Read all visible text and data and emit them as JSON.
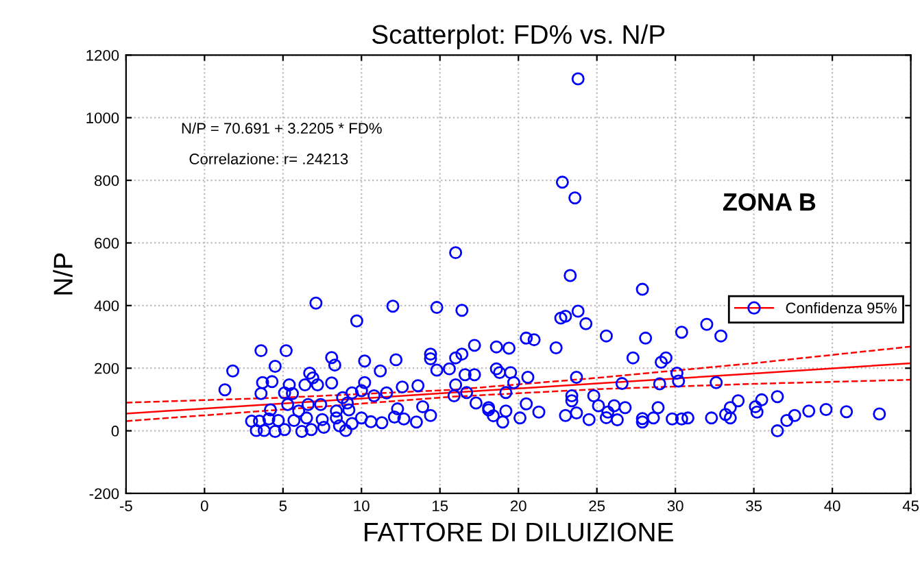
{
  "chart_data": {
    "type": "scatter",
    "title": "Scatterplot: FD% vs. N/P",
    "xlabel": "FATTORE DI DILUIZIONE",
    "ylabel": "N/P",
    "annotations": [
      "N/P = 70.691 + 3.2205 * FD%",
      "Correlazione: r= .24213",
      "ZONA B"
    ],
    "xlim": [
      -5,
      45
    ],
    "xticks": [
      -5,
      0,
      5,
      10,
      15,
      20,
      25,
      30,
      35,
      40,
      45
    ],
    "ylim": [
      -200,
      1200
    ],
    "yticks": [
      -200,
      0,
      200,
      400,
      600,
      800,
      1000,
      1200
    ],
    "grid": true,
    "legend": "right",
    "series": [
      {
        "marker": "circle",
        "color": "#0000ff",
        "x": [
          7.1,
          12.0,
          9.7,
          3.6,
          5.2,
          8.1,
          8.3,
          10.2,
          12.2,
          1.8,
          4.5,
          6.7,
          6.9,
          11.2,
          1.3,
          3.7,
          4.3,
          5.4,
          6.4,
          7.2,
          8.1,
          10.2,
          3.6,
          5.1,
          5.6,
          9.4,
          10.0,
          10.8,
          11.6,
          8.8,
          4.2,
          5.3,
          6.6,
          7.4,
          9.1,
          6.0,
          8.4,
          9.2,
          12.3,
          3.0,
          3.5,
          4.1,
          4.7,
          5.7,
          6.5,
          7.5,
          8.4,
          9.4,
          10.0,
          10.6,
          11.3,
          12.1,
          3.3,
          3.8,
          4.5,
          5.1,
          6.2,
          6.8,
          7.6,
          8.6,
          9.0,
          23.3,
          27.9,
          14.8,
          16.4,
          22.7,
          23.0,
          23.8,
          24.3,
          25.6,
          28.1,
          20.5,
          21.0,
          17.2,
          18.6,
          19.4,
          22.4,
          27.3,
          14.4,
          14.4,
          16.0,
          16.4,
          14.8,
          15.6,
          16.6,
          17.2,
          18.6,
          18.8,
          19.5,
          20.6,
          19.7,
          23.7,
          26.6,
          16.0,
          13.6,
          12.6,
          15.9,
          16.7,
          19.2,
          23.4,
          23.4,
          24.8,
          17.3,
          20.5,
          13.9,
          25.1,
          26.1,
          26.8,
          18.1,
          18.1,
          19.2,
          21.3,
          23.7,
          25.7,
          14.4,
          18.4,
          20.1,
          23.0,
          25.6,
          26.3,
          12.7,
          13.5,
          19.0,
          24.5,
          27.9,
          27.9,
          28.6,
          32.0,
          30.4,
          32.9,
          29.4,
          29.1,
          30.1,
          30.2,
          32.6,
          29.0,
          28.9,
          34.0,
          33.5,
          33.2,
          33.5,
          32.3,
          35.1,
          35.2,
          35.5,
          36.5,
          36.5,
          37.1,
          37.6,
          38.5,
          39.6,
          40.9,
          43.0,
          29.8,
          30.4,
          30.8,
          16.0,
          23.8,
          22.8,
          23.6
        ],
        "values": [
          408,
          398,
          351,
          256,
          256,
          234,
          210,
          223,
          227,
          191,
          206,
          184,
          169,
          191,
          131,
          154,
          157,
          147,
          147,
          147,
          153,
          154,
          119,
          121,
          119,
          121,
          128,
          112,
          121,
          106,
          67,
          84,
          84,
          84,
          89,
          63,
          63,
          67,
          70,
          31,
          31,
          38,
          33,
          33,
          41,
          36,
          41,
          23,
          41,
          29,
          26,
          44,
          1,
          1,
          -2,
          4,
          -2,
          4,
          11,
          16,
          1,
          496,
          452,
          394,
          385,
          360,
          366,
          382,
          342,
          303,
          296,
          296,
          291,
          273,
          268,
          264,
          265,
          233,
          245,
          230,
          233,
          245,
          194,
          198,
          179,
          179,
          198,
          186,
          186,
          171,
          154,
          171,
          151,
          147,
          144,
          140,
          112,
          122,
          122,
          112,
          96,
          112,
          89,
          86,
          77,
          80,
          80,
          74,
          74,
          67,
          63,
          60,
          57,
          60,
          49,
          48,
          41,
          49,
          42,
          35,
          38,
          28,
          28,
          36,
          39,
          28,
          41,
          340,
          315,
          303,
          233,
          219,
          184,
          159,
          154,
          150,
          74,
          96,
          74,
          52,
          41,
          41,
          77,
          60,
          99,
          109,
          0,
          33,
          49,
          63,
          68,
          61,
          54,
          38,
          38,
          41,
          569,
          1124,
          794,
          744
        ]
      },
      {
        "type": "line",
        "name": "Confidenza 95%",
        "color": "#ff0000",
        "x": [
          -5,
          5,
          15.8,
          25,
          35,
          45
        ],
        "values": [
          55,
          87,
          122,
          151,
          183,
          216
        ]
      },
      {
        "type": "line",
        "line_style": "dashed",
        "color": "#ff0000",
        "x": [
          -5,
          5,
          15.8,
          25,
          35,
          45
        ],
        "values": [
          31,
          68,
          109,
          133,
          150,
          163
        ]
      },
      {
        "type": "line",
        "line_style": "dashed",
        "color": "#ff0000",
        "x": [
          -5,
          5,
          15.8,
          25,
          35,
          45
        ],
        "values": [
          90,
          106,
          131,
          169,
          216,
          269
        ]
      }
    ]
  }
}
